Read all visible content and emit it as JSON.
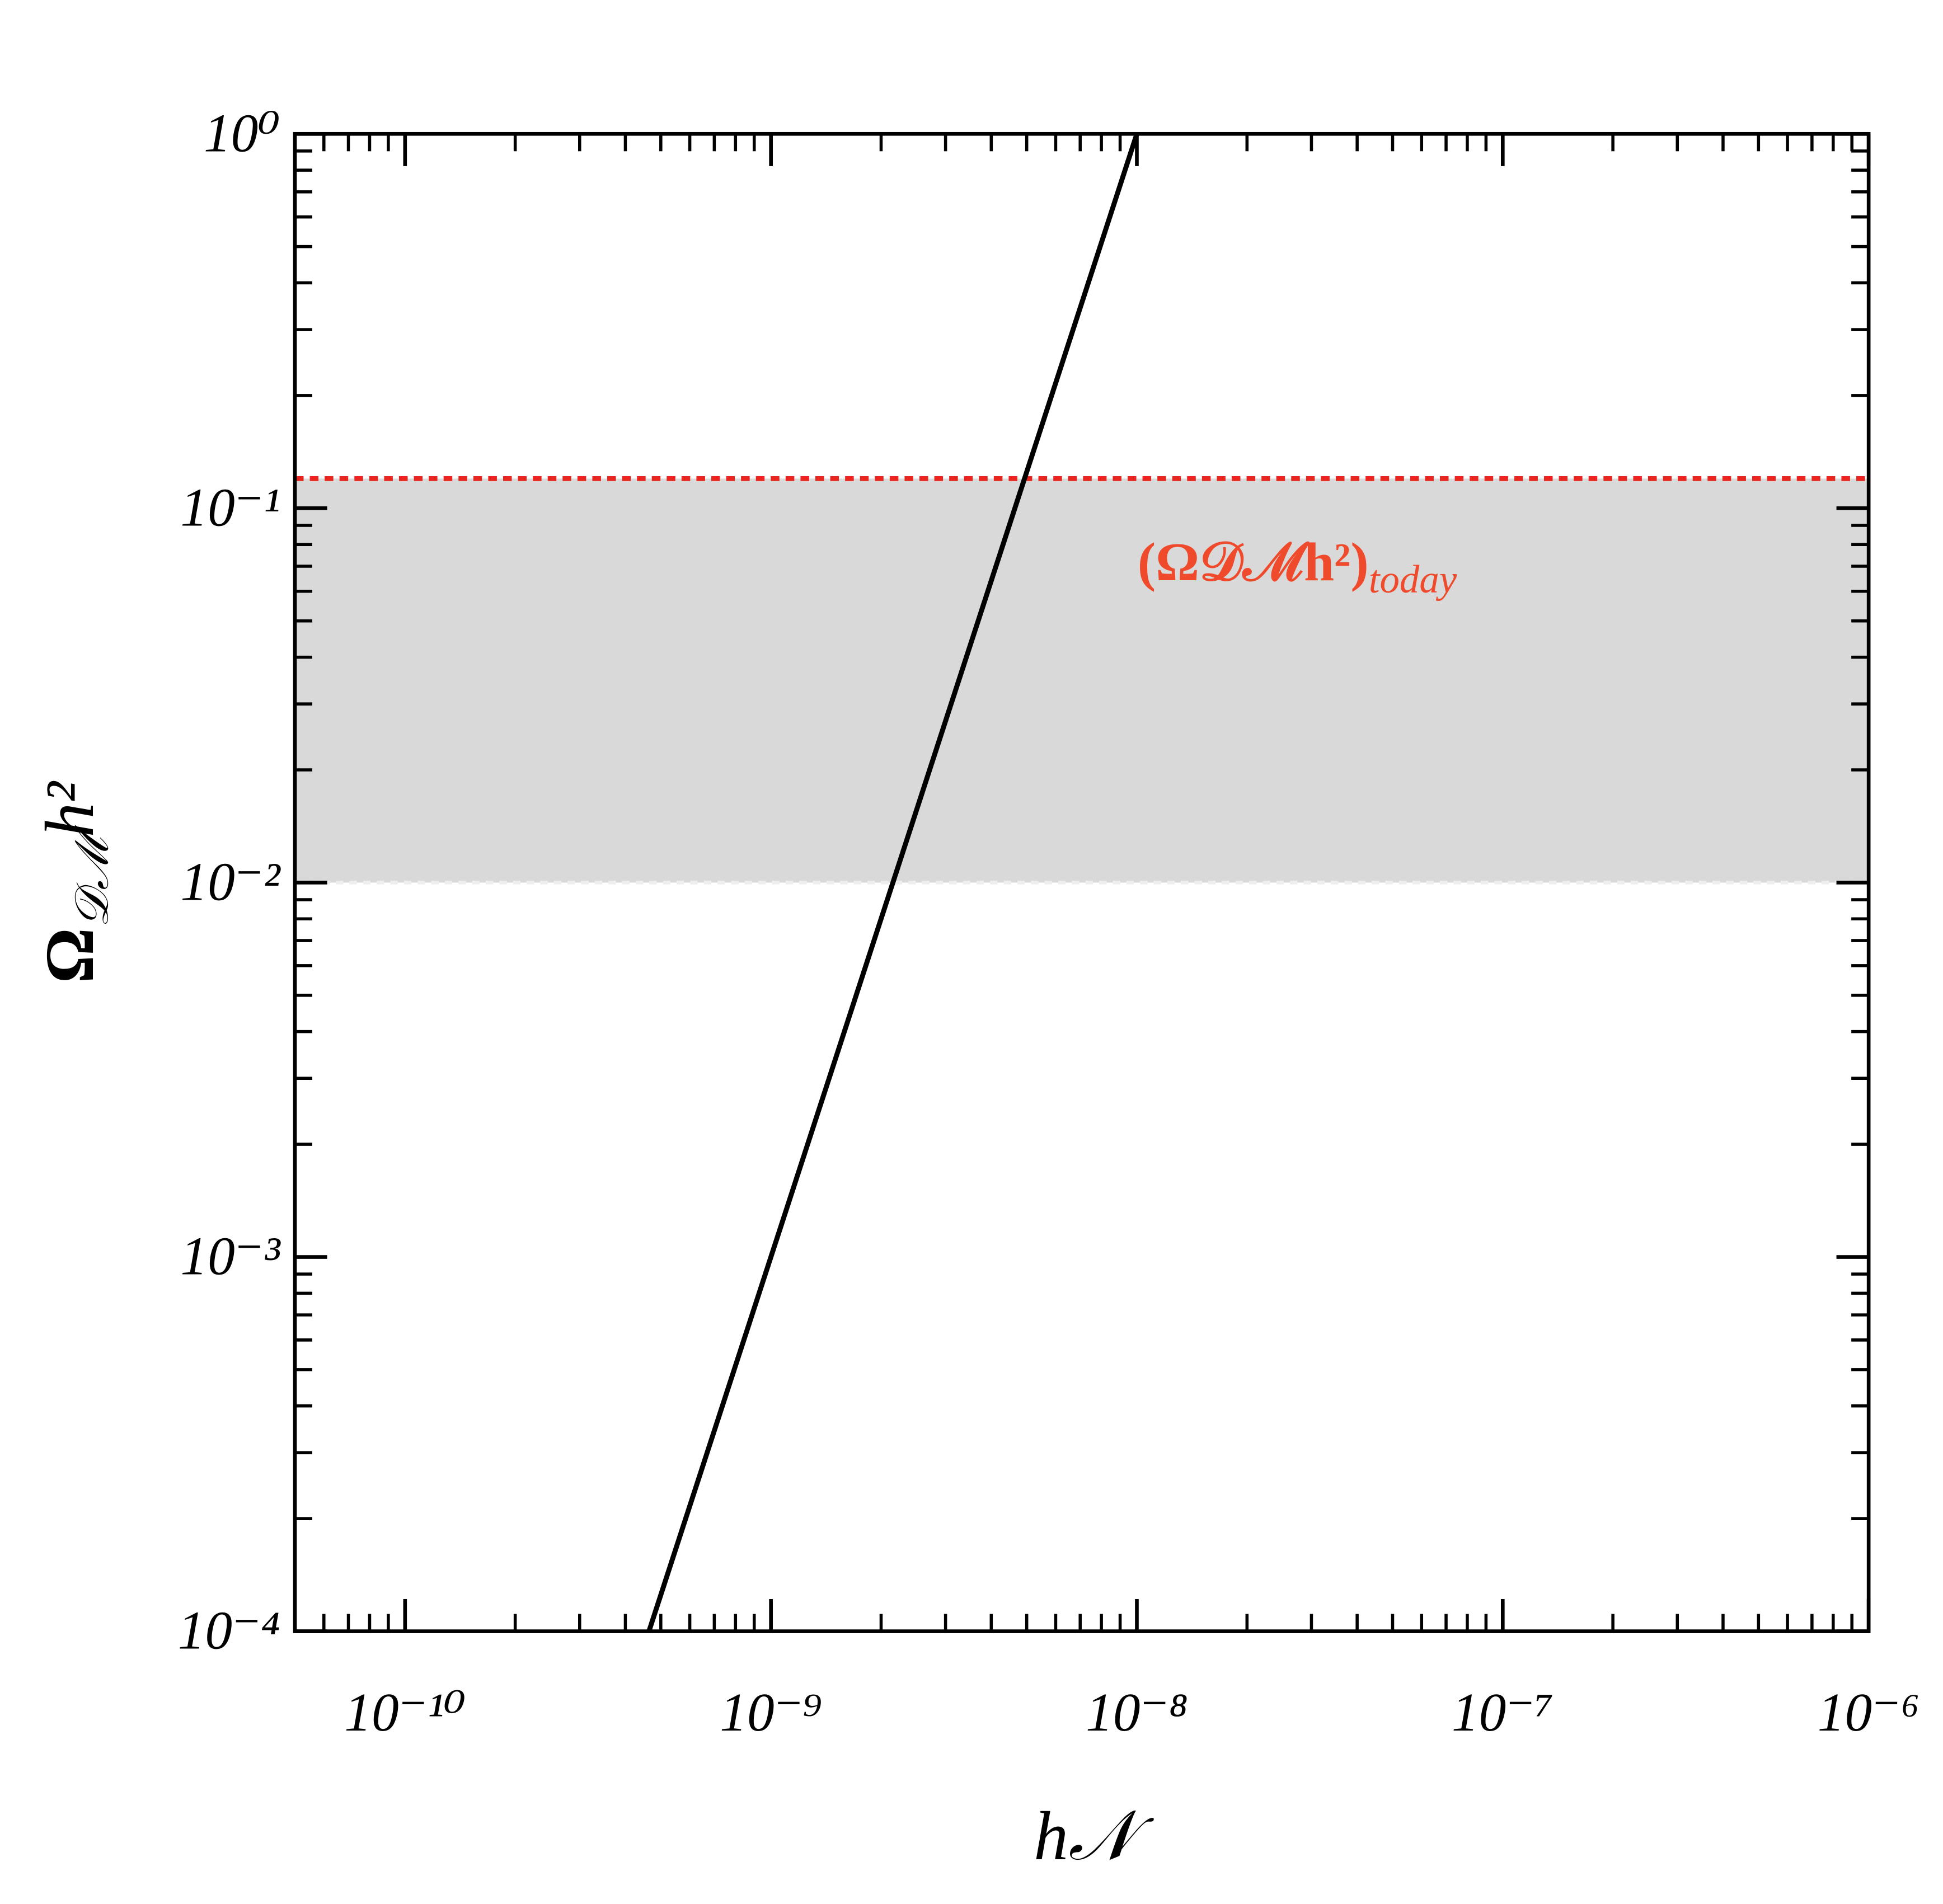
{
  "chart_data": {
    "type": "line",
    "x_label": "h𝒩",
    "y_label": {
      "main": "Ω",
      "sub": "𝒟ℳ",
      "tail": "h²"
    },
    "annotation": {
      "main": "(Ω𝒟ℳh²)",
      "sub": "today",
      "color": "#f04a2c"
    },
    "x_log": true,
    "y_log": true,
    "xlim": [
      5e-11,
      1e-06
    ],
    "ylim": [
      0.0001,
      1
    ],
    "xticks": [
      {
        "value": 1e-10,
        "label": "10⁻¹⁰"
      },
      {
        "value": 1e-09,
        "label": "10⁻⁹"
      },
      {
        "value": 1e-08,
        "label": "10⁻⁸"
      },
      {
        "value": 1e-07,
        "label": "10⁻⁷"
      },
      {
        "value": 1e-06,
        "label": "10⁻⁶"
      }
    ],
    "yticks": [
      {
        "value": 0.0001,
        "label": "10⁻⁴"
      },
      {
        "value": 0.001,
        "label": "10⁻³"
      },
      {
        "value": 0.01,
        "label": "10⁻²"
      },
      {
        "value": 0.1,
        "label": "10⁻¹"
      },
      {
        "value": 1,
        "label": "10⁰"
      }
    ],
    "band": {
      "lower": 0.01,
      "upper": 0.12,
      "color": "#d9d9d9",
      "lower_line_color": "#eeeeee",
      "upper_line_color": "#e8251f"
    },
    "series": [
      {
        "color": "#000000",
        "x": [
          4.64e-10,
          1e-08
        ],
        "values": [
          0.0001,
          1
        ]
      }
    ]
  }
}
